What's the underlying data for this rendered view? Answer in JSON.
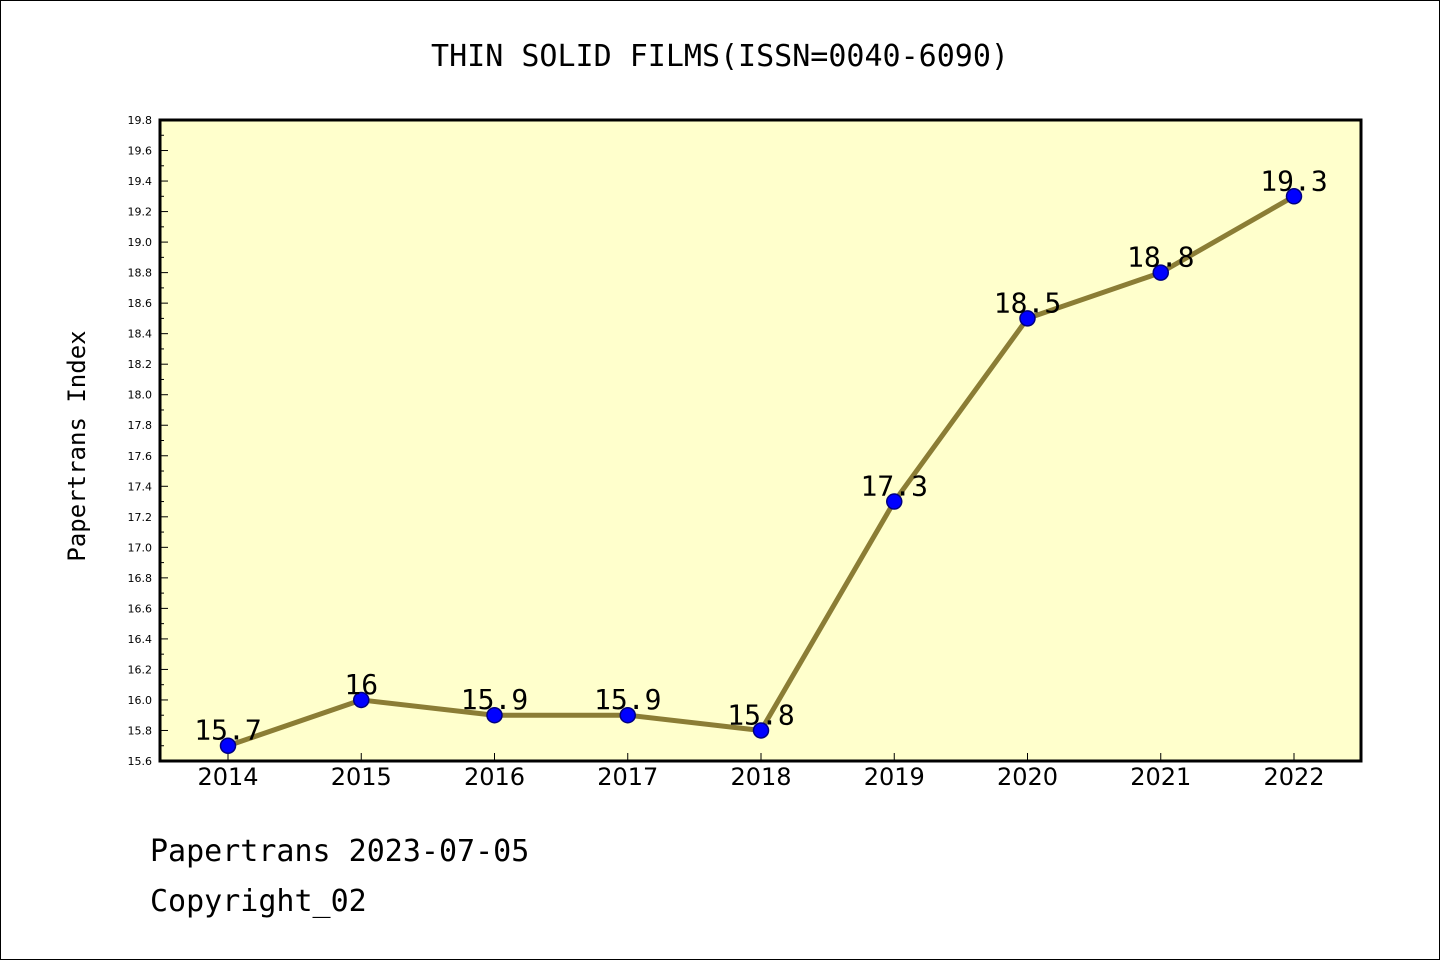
{
  "chart_data": {
    "type": "line",
    "title": "THIN SOLID FILMS(ISSN=0040-6090)",
    "xlabel": "",
    "ylabel": "Papertrans Index",
    "x": [
      "2014",
      "2015",
      "2016",
      "2017",
      "2018",
      "2019",
      "2020",
      "2021",
      "2022"
    ],
    "values": [
      15.7,
      16.0,
      15.9,
      15.9,
      15.8,
      17.3,
      18.5,
      18.8,
      19.3
    ],
    "data_labels": [
      "15.7",
      "16",
      "15.9",
      "15.9",
      "15.8",
      "17.3",
      "18.5",
      "18.8",
      "19.3"
    ],
    "ylim": [
      15.6,
      19.8
    ],
    "yticks": [
      "15.6",
      "15.8",
      "16.0",
      "16.2",
      "16.4",
      "16.6",
      "16.8",
      "17.0",
      "17.2",
      "17.4",
      "17.6",
      "17.8",
      "18.0",
      "18.2",
      "18.4",
      "18.6",
      "18.8",
      "19.0",
      "19.2",
      "19.4",
      "19.6",
      "19.8"
    ],
    "grid": false,
    "colors": {
      "plot_background": "#ffffcc",
      "line": "#8b7d35",
      "marker_fill": "#0000ff",
      "marker_edge": "#000080"
    }
  },
  "footer": {
    "line1": "Papertrans 2023-07-05",
    "line2": "Copyright_02"
  }
}
